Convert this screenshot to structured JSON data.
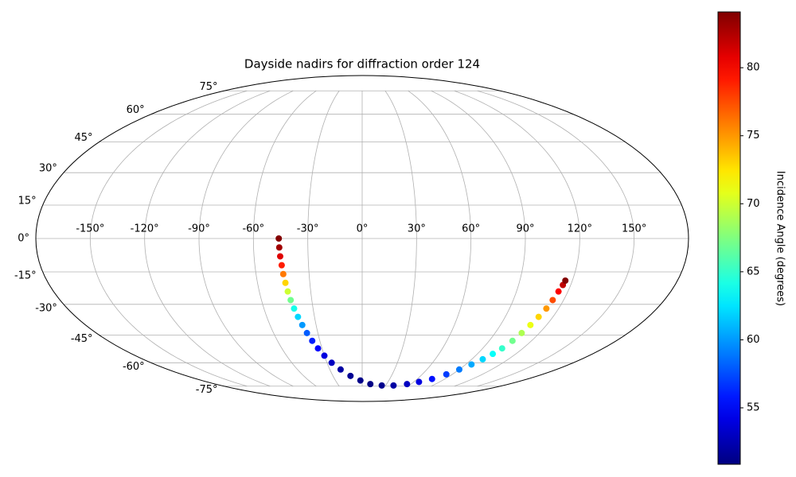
{
  "chart_data": {
    "type": "scatter",
    "projection": "mollweide",
    "title": "Dayside nadirs for diffraction order 124",
    "x": [
      -46,
      -45.8,
      -45.5,
      -45,
      -44.6,
      -44,
      -43.4,
      -42.6,
      -41.6,
      -40.4,
      -39,
      -37.4,
      -35.4,
      -33,
      -30,
      -26,
      -20,
      -12,
      -2,
      10,
      25,
      40,
      55,
      66,
      76,
      84,
      90,
      95,
      99,
      102,
      104.5,
      106.5,
      108,
      109.5,
      111,
      112.5,
      113.5,
      114.5,
      115.5,
      116
    ],
    "y": [
      0,
      -4,
      -8,
      -12,
      -16,
      -20,
      -24,
      -28,
      -32,
      -36,
      -40,
      -44,
      -48,
      -52,
      -56,
      -60,
      -64,
      -68,
      -71,
      -73.5,
      -74.5,
      -74.5,
      -73.5,
      -72,
      -70,
      -67,
      -64,
      -61,
      -58,
      -55,
      -52,
      -48,
      -44,
      -40,
      -36,
      -32,
      -28,
      -24,
      -21,
      -19
    ],
    "c": [
      84,
      83,
      81,
      79,
      76,
      73,
      70,
      67,
      64,
      62,
      60,
      58,
      56,
      55,
      54,
      53,
      52,
      51.5,
      51.2,
      51,
      51.3,
      52,
      53,
      54,
      55.5,
      57,
      59,
      60.5,
      62,
      63.5,
      65,
      67,
      69,
      71,
      73,
      75,
      77.5,
      80,
      82,
      84
    ],
    "colormap": "jet",
    "clim": [
      50.85,
      84.1
    ],
    "grid": true,
    "xticks": [
      {
        "value": -150,
        "label": "-150°"
      },
      {
        "value": -120,
        "label": "-120°"
      },
      {
        "value": -90,
        "label": "-90°"
      },
      {
        "value": -60,
        "label": "-60°"
      },
      {
        "value": -30,
        "label": "-30°"
      },
      {
        "value": 0,
        "label": "0°"
      },
      {
        "value": 30,
        "label": "30°"
      },
      {
        "value": 60,
        "label": "60°"
      },
      {
        "value": 90,
        "label": "90°"
      },
      {
        "value": 120,
        "label": "120°"
      },
      {
        "value": 150,
        "label": "150°"
      }
    ],
    "yticks": [
      {
        "value": -75,
        "label": "-75°"
      },
      {
        "value": -60,
        "label": "-60°"
      },
      {
        "value": -45,
        "label": "-45°"
      },
      {
        "value": -30,
        "label": "-30°"
      },
      {
        "value": -15,
        "label": "-15°"
      },
      {
        "value": 0,
        "label": "0°"
      },
      {
        "value": 15,
        "label": "15°"
      },
      {
        "value": 30,
        "label": "30°"
      },
      {
        "value": 45,
        "label": "45°"
      },
      {
        "value": 60,
        "label": "60°"
      },
      {
        "value": 75,
        "label": "75°"
      }
    ],
    "colorbar": {
      "label": "Incidence Angle (degrees)",
      "ticks": [
        55,
        60,
        65,
        70,
        75,
        80
      ]
    }
  }
}
